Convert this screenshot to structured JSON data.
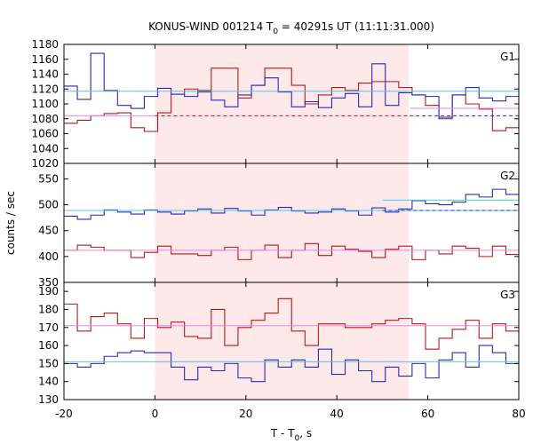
{
  "chart_data": {
    "type": "line",
    "title": "KONUS-WIND 001214 T",
    "title_sub": "0",
    "title_rest": " = 40291s UT (11:11:31.000)",
    "xlabel": "T - T",
    "xlabel_sub": "0",
    "xlabel_rest": ", s",
    "ylabel": "counts / sec",
    "xlim": [
      -20,
      80
    ],
    "x_ticks": [
      -20,
      0,
      20,
      40,
      60,
      80
    ],
    "shaded_interval": [
      0,
      55.8
    ],
    "colors": {
      "red": "#b21a1a",
      "blue": "#2a2ab8",
      "pink": "#ee82ee",
      "cyan": "#57c6e8",
      "shade": "#fde8ea"
    },
    "panels": [
      {
        "label": "G1",
        "ylim": [
          1020,
          1180
        ],
        "y_ticks": [
          1020,
          1040,
          1060,
          1080,
          1100,
          1120,
          1140,
          1160,
          1180
        ],
        "bin_width": 2.944,
        "series": [
          {
            "color": "red",
            "x_start": -20,
            "values": [
              1074,
              1078,
              1084,
              1087,
              1088,
              1068,
              1063,
              1088,
              1113,
              1120,
              1118,
              1148,
              1148,
              1108,
              1125,
              1148,
              1148,
              1125,
              1100,
              1112,
              1122,
              1118,
              1128,
              1130,
              1130,
              1122,
              1112,
              1098,
              1082,
              1112,
              1100,
              1093,
              1064,
              1068,
              1092,
              1048,
              1068
            ]
          },
          {
            "color": "blue",
            "x_start": -20,
            "values": [
              1124,
              1106,
              1168,
              1118,
              1098,
              1094,
              1110,
              1121,
              1113,
              1110,
              1116,
              1105,
              1096,
              1112,
              1125,
              1135,
              1116,
              1096,
              1103,
              1095,
              1108,
              1114,
              1096,
              1154,
              1098,
              1115,
              1112,
              1110,
              1080,
              1112,
              1122,
              1108,
              1104,
              1110,
              1120,
              1104,
              1138
            ]
          },
          {
            "color": "cyan",
            "x_start": -20,
            "x_end": 80,
            "values": [
              1117
            ],
            "style": "solid"
          },
          {
            "color": "pink",
            "x_start": -20,
            "x_end": 0,
            "values": [
              1084
            ],
            "style": "solid"
          },
          {
            "color": "red",
            "x_start": 0,
            "x_end": 56,
            "values": [
              1084
            ],
            "style": "dashed"
          },
          {
            "color": "pink",
            "x_start": 56,
            "x_end": 80,
            "values": [
              1094
            ],
            "style": "solid"
          },
          {
            "color": "blue",
            "x_start": 56,
            "x_end": 80,
            "values": [
              1084
            ],
            "style": "dashed"
          }
        ]
      },
      {
        "label": "G2",
        "ylim": [
          350,
          580
        ],
        "y_ticks": [
          350,
          400,
          450,
          500,
          550
        ],
        "bin_width": 2.944,
        "series": [
          {
            "color": "red",
            "x_start": -20,
            "values": [
              412,
              422,
              418,
              412,
              412,
              398,
              408,
              420,
              405,
              405,
              402,
              412,
              418,
              394,
              412,
              422,
              398,
              412,
              425,
              402,
              420,
              414,
              410,
              398,
              414,
              420,
              394,
              412,
              405,
              420,
              416,
              400,
              420,
              404,
              414,
              396,
              420
            ]
          },
          {
            "color": "blue",
            "x_start": -20,
            "values": [
              478,
              472,
              480,
              490,
              486,
              482,
              490,
              486,
              482,
              488,
              492,
              484,
              493,
              488,
              480,
              490,
              495,
              488,
              484,
              486,
              492,
              488,
              480,
              494,
              486,
              492,
              508,
              502,
              500,
              505,
              520,
              515,
              530,
              520,
              510,
              505,
              490
            ]
          },
          {
            "color": "cyan",
            "x_start": -20,
            "x_end": 80,
            "values": [
              489
            ],
            "style": "solid"
          },
          {
            "color": "pink",
            "x_start": -20,
            "x_end": 80,
            "values": [
              412
            ],
            "style": "solid"
          },
          {
            "color": "cyan",
            "x_start": 50,
            "x_end": 80,
            "values": [
              509
            ],
            "style": "solid"
          },
          {
            "color": "blue",
            "x_start": 50,
            "x_end": 80,
            "values": [
              489
            ],
            "style": "dashed"
          }
        ]
      },
      {
        "label": "G3",
        "ylim": [
          130,
          195
        ],
        "y_ticks": [
          130,
          140,
          150,
          160,
          170,
          180,
          190
        ],
        "bin_width": 2.944,
        "series": [
          {
            "color": "red",
            "x_start": -20,
            "values": [
              183,
              168,
              176,
              178,
              172,
              164,
              175,
              170,
              173,
              165,
              164,
              180,
              160,
              170,
              174,
              178,
              186,
              168,
              160,
              172,
              172,
              170,
              170,
              172,
              174,
              175,
              172,
              158,
              164,
              169,
              174,
              164,
              172,
              168,
              172,
              164,
              184
            ]
          },
          {
            "color": "blue",
            "x_start": -20,
            "values": [
              150,
              148,
              150,
              154,
              156,
              157,
              156,
              156,
              148,
              141,
              148,
              146,
              150,
              142,
              140,
              152,
              148,
              152,
              148,
              158,
              144,
              152,
              146,
              140,
              148,
              143,
              150,
              142,
              152,
              156,
              148,
              160,
              156,
              150,
              140,
              148,
              170
            ]
          },
          {
            "color": "cyan",
            "x_start": -20,
            "x_end": 80,
            "values": [
              151
            ],
            "style": "solid"
          },
          {
            "color": "pink",
            "x_start": -20,
            "x_end": 80,
            "values": [
              171
            ],
            "style": "solid"
          }
        ]
      }
    ]
  }
}
